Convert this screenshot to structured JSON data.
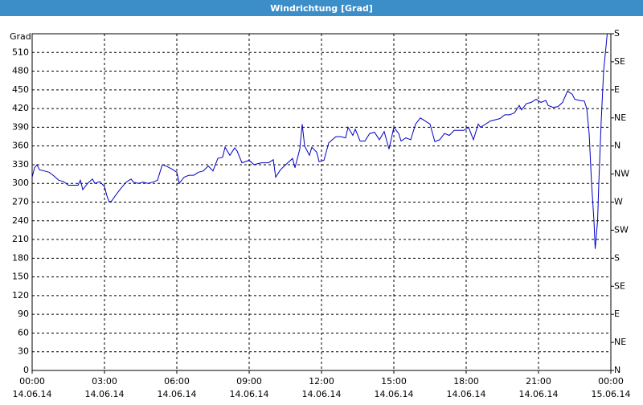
{
  "chart_data": {
    "type": "line",
    "title": "Windrichtung [Grad]",
    "y_label": "Grad",
    "x": [
      0,
      0.1,
      0.2,
      0.3,
      0.5,
      0.7,
      0.9,
      1.1,
      1.3,
      1.5,
      1.7,
      1.9,
      2.0,
      2.1,
      2.3,
      2.5,
      2.6,
      2.8,
      3.0,
      3.1,
      3.2,
      3.3,
      3.5,
      3.7,
      3.9,
      4.1,
      4.2,
      4.4,
      4.6,
      4.8,
      5.0,
      5.2,
      5.3,
      5.4,
      5.6,
      5.8,
      6.0,
      6.1,
      6.3,
      6.5,
      6.7,
      6.9,
      7.1,
      7.3,
      7.5,
      7.7,
      7.9,
      8.0,
      8.2,
      8.4,
      8.5,
      8.7,
      9.0,
      9.2,
      9.5,
      9.8,
      10.0,
      10.1,
      10.3,
      10.6,
      10.8,
      10.9,
      11.1,
      11.2,
      11.3,
      11.5,
      11.6,
      11.8,
      11.9,
      12.1,
      12.3,
      12.6,
      12.8,
      13.0,
      13.1,
      13.3,
      13.4,
      13.6,
      13.8,
      14.0,
      14.2,
      14.4,
      14.6,
      14.8,
      15.0,
      15.2,
      15.3,
      15.5,
      15.7,
      15.9,
      16.1,
      16.3,
      16.5,
      16.7,
      16.9,
      17.1,
      17.3,
      17.5,
      17.7,
      17.9,
      18.1,
      18.3,
      18.5,
      18.6,
      18.8,
      19.0,
      19.2,
      19.4,
      19.6,
      19.8,
      20.0,
      20.2,
      20.3,
      20.5,
      20.7,
      20.9,
      21.1,
      21.3,
      21.4,
      21.6,
      21.8,
      22.0,
      22.2,
      22.4,
      22.5,
      22.7,
      22.9,
      23.0,
      23.1,
      23.2,
      23.3,
      23.35,
      23.45,
      23.5,
      23.6,
      23.7,
      23.8,
      23.85
    ],
    "series": [
      {
        "name": "Windrichtung",
        "color": "#0000c0",
        "values": [
          310,
          325,
          330,
          322,
          320,
          318,
          312,
          305,
          303,
          297,
          297,
          297,
          305,
          290,
          300,
          307,
          300,
          303,
          295,
          280,
          270,
          272,
          283,
          293,
          302,
          307,
          302,
          300,
          302,
          300,
          302,
          305,
          318,
          330,
          327,
          323,
          318,
          300,
          310,
          313,
          313,
          318,
          320,
          328,
          320,
          340,
          342,
          358,
          345,
          357,
          352,
          333,
          337,
          330,
          333,
          333,
          338,
          310,
          322,
          333,
          340,
          325,
          355,
          395,
          360,
          345,
          358,
          350,
          335,
          337,
          365,
          375,
          375,
          373,
          390,
          377,
          387,
          368,
          368,
          380,
          382,
          370,
          383,
          355,
          390,
          380,
          368,
          373,
          370,
          395,
          405,
          400,
          395,
          367,
          370,
          380,
          377,
          385,
          385,
          385,
          390,
          370,
          395,
          390,
          395,
          400,
          402,
          404,
          410,
          410,
          413,
          425,
          418,
          428,
          430,
          435,
          430,
          433,
          425,
          422,
          423,
          430,
          448,
          443,
          435,
          433,
          432,
          420,
          380,
          300,
          240,
          195,
          240,
          300,
          400,
          480,
          520,
          540
        ]
      }
    ],
    "xlim": [
      0,
      24
    ],
    "xticks": [
      {
        "value": 0,
        "label": "00:00"
      },
      {
        "value": 3,
        "label": "03:00"
      },
      {
        "value": 6,
        "label": "06:00"
      },
      {
        "value": 9,
        "label": "09:00"
      },
      {
        "value": 12,
        "label": "12:00"
      },
      {
        "value": 15,
        "label": "15:00"
      },
      {
        "value": 18,
        "label": "18:00"
      },
      {
        "value": 21,
        "label": "21:00"
      },
      {
        "value": 24,
        "label": "00:00"
      }
    ],
    "xtick_dates": [
      "14.06.14",
      "14.06.14",
      "14.06.14",
      "14.06.14",
      "14.06.14",
      "14.06.14",
      "14.06.14",
      "14.06.14",
      "15.06.14"
    ],
    "ylim": [
      0,
      540
    ],
    "yticks": [
      0,
      30,
      60,
      90,
      120,
      150,
      180,
      210,
      240,
      270,
      300,
      330,
      360,
      390,
      420,
      450,
      480,
      510
    ],
    "y2lim": [
      0,
      540
    ],
    "y2ticks": [
      {
        "value": 0,
        "label": "N"
      },
      {
        "value": 45,
        "label": "NE"
      },
      {
        "value": 90,
        "label": "E"
      },
      {
        "value": 135,
        "label": "SE"
      },
      {
        "value": 180,
        "label": "S"
      },
      {
        "value": 225,
        "label": "SW"
      },
      {
        "value": 270,
        "label": "W"
      },
      {
        "value": 315,
        "label": "NW"
      },
      {
        "value": 360,
        "label": "N"
      },
      {
        "value": 405,
        "label": "NE"
      },
      {
        "value": 450,
        "label": "E"
      },
      {
        "value": 495,
        "label": "SE"
      },
      {
        "value": 540,
        "label": "S"
      }
    ],
    "grid": true
  }
}
